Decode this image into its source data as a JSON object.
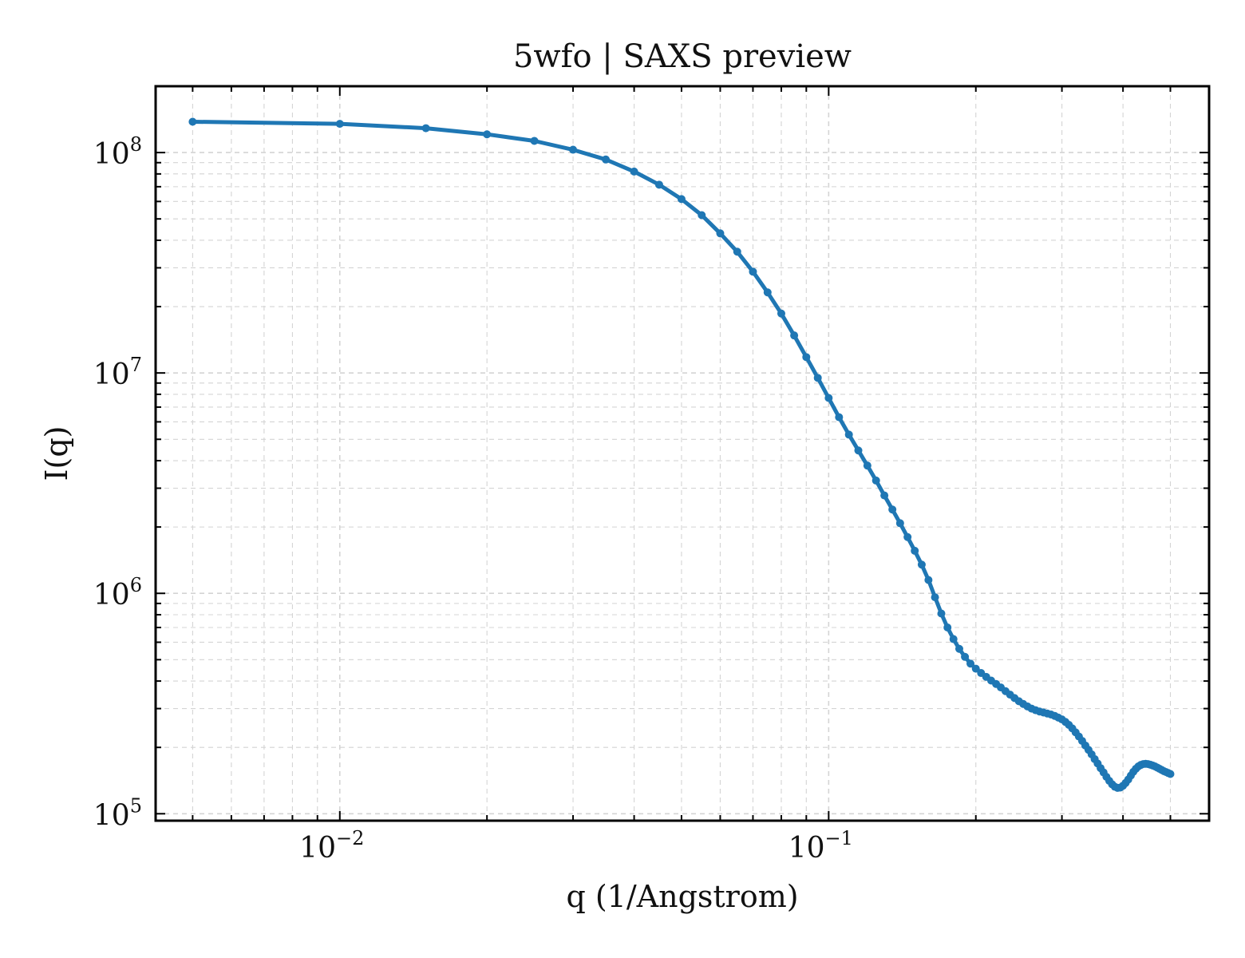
{
  "chart_data": {
    "type": "line",
    "title": "5wfo | SAXS preview",
    "xlabel": "q (1/Angstrom)",
    "ylabel": "I(q)",
    "xscale": "log",
    "yscale": "log",
    "xlim": [
      0.0042,
      0.6
    ],
    "ylim": [
      93000,
      200000000
    ],
    "grid": true,
    "legend": "none",
    "line_color": "#1f77b4",
    "x_ticks": [
      {
        "value": 0.01,
        "base": "10",
        "exp": "−2"
      },
      {
        "value": 0.1,
        "base": "10",
        "exp": "−1"
      }
    ],
    "y_ticks": [
      {
        "value": 100000,
        "base": "10",
        "exp": "5"
      },
      {
        "value": 1000000,
        "base": "10",
        "exp": "6"
      },
      {
        "value": 10000000,
        "base": "10",
        "exp": "7"
      },
      {
        "value": 100000000,
        "base": "10",
        "exp": "8"
      }
    ],
    "series": [
      {
        "x": [
          0.005,
          0.01,
          0.015,
          0.02,
          0.025,
          0.03,
          0.035,
          0.04,
          0.045,
          0.05,
          0.055,
          0.06,
          0.065,
          0.07,
          0.075,
          0.08,
          0.085,
          0.09,
          0.095,
          0.1,
          0.105,
          0.11,
          0.115,
          0.12,
          0.125,
          0.13,
          0.135,
          0.14,
          0.145,
          0.15,
          0.155,
          0.16,
          0.165,
          0.17,
          0.175,
          0.18,
          0.185,
          0.19,
          0.195,
          0.2,
          0.205,
          0.21,
          0.215,
          0.22,
          0.225,
          0.23,
          0.235,
          0.24,
          0.245,
          0.25,
          0.255,
          0.26,
          0.265,
          0.27,
          0.275,
          0.28,
          0.285,
          0.29,
          0.295,
          0.3,
          0.305,
          0.31,
          0.315,
          0.32,
          0.325,
          0.33,
          0.335,
          0.34,
          0.345,
          0.35,
          0.355,
          0.36,
          0.365,
          0.37,
          0.375,
          0.38,
          0.385,
          0.39,
          0.395,
          0.4,
          0.405,
          0.41,
          0.415,
          0.42,
          0.425,
          0.43,
          0.435,
          0.44,
          0.445,
          0.45,
          0.455,
          0.46,
          0.465,
          0.47,
          0.475,
          0.48,
          0.485,
          0.49,
          0.495,
          0.5
        ],
        "y": [
          138000000,
          135000000,
          129000000,
          121000000,
          113000000,
          103000000,
          93000000,
          82000000,
          71500000,
          61500000,
          52000000,
          43000000,
          35500000,
          28800000,
          23200000,
          18600000,
          14800000,
          11800000,
          9500000,
          7700000,
          6300000,
          5250000,
          4450000,
          3800000,
          3250000,
          2780000,
          2400000,
          2080000,
          1800000,
          1560000,
          1350000,
          1150000,
          960000,
          810000,
          700000,
          620000,
          560000,
          515000,
          480000,
          455000,
          435000,
          418000,
          402000,
          388000,
          374000,
          360000,
          347000,
          335000,
          324000,
          315000,
          307000,
          300000,
          295000,
          291000,
          288000,
          285000,
          282000,
          278000,
          273000,
          268000,
          261000,
          253000,
          244000,
          234000,
          224000,
          214000,
          204000,
          195000,
          186000,
          177000,
          169000,
          161000,
          154000,
          147000,
          141000,
          136000,
          132500,
          131000,
          131500,
          134000,
          138000,
          143000,
          149000,
          155000,
          160000,
          164000,
          166500,
          168000,
          168500,
          168000,
          167000,
          165500,
          164000,
          162000,
          160000,
          158000,
          156000,
          154500,
          153000,
          151500
        ]
      }
    ]
  }
}
